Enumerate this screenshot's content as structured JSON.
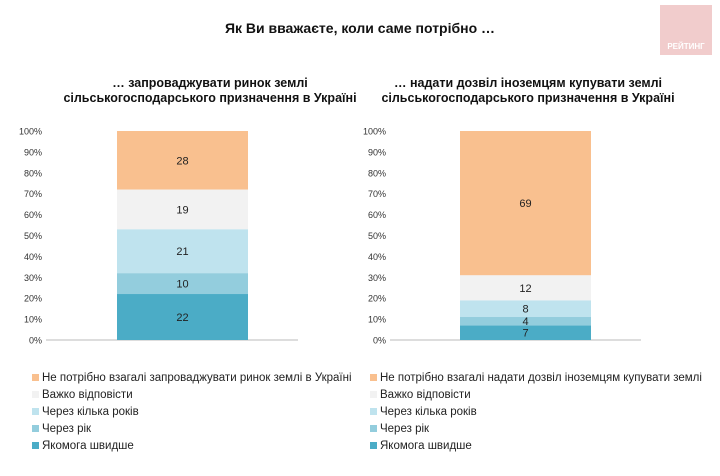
{
  "title": "Як Ви вважаєте, коли саме потрібно …",
  "logo": "РЕЙТИНГ",
  "chart_data": [
    {
      "type": "bar",
      "stacked": true,
      "title": "… запроваджувати ринок землі сільськогосподарського призначення в Україні",
      "categories": [
        ""
      ],
      "ylim": [
        0,
        100
      ],
      "yticks": [
        "0%",
        "10%",
        "20%",
        "30%",
        "40%",
        "50%",
        "60%",
        "70%",
        "80%",
        "90%",
        "100%"
      ],
      "legend_position": "bottom",
      "series": [
        {
          "name": "Якомога швидше",
          "values": [
            22
          ],
          "color": "#4bacc6"
        },
        {
          "name": "Через рік",
          "values": [
            10
          ],
          "color": "#93cddd"
        },
        {
          "name": "Через кілька років",
          "values": [
            21
          ],
          "color": "#bfe3ee"
        },
        {
          "name": "Важко відповісти",
          "values": [
            19
          ],
          "color": "#f2f2f2"
        },
        {
          "name": "Не потрібно взагалі запроваджувати ринок землі в Україні",
          "values": [
            28
          ],
          "color": "#f9c08f"
        }
      ]
    },
    {
      "type": "bar",
      "stacked": true,
      "title": "… надати дозвіл іноземцям купувати землі сільськогосподарського призначення в Україні",
      "categories": [
        ""
      ],
      "ylim": [
        0,
        100
      ],
      "yticks": [
        "0%",
        "10%",
        "20%",
        "30%",
        "40%",
        "50%",
        "60%",
        "70%",
        "80%",
        "90%",
        "100%"
      ],
      "legend_position": "bottom",
      "series": [
        {
          "name": "Якомога швидше",
          "values": [
            7
          ],
          "color": "#4bacc6"
        },
        {
          "name": "Через рік",
          "values": [
            4
          ],
          "color": "#93cddd"
        },
        {
          "name": "Через кілька років",
          "values": [
            8
          ],
          "color": "#bfe3ee"
        },
        {
          "name": "Важко відповісти",
          "values": [
            12
          ],
          "color": "#f2f2f2"
        },
        {
          "name": "Не потрібно взагалі надати дозвіл іноземцям купувати землі",
          "values": [
            69
          ],
          "color": "#f9c08f"
        }
      ]
    }
  ]
}
